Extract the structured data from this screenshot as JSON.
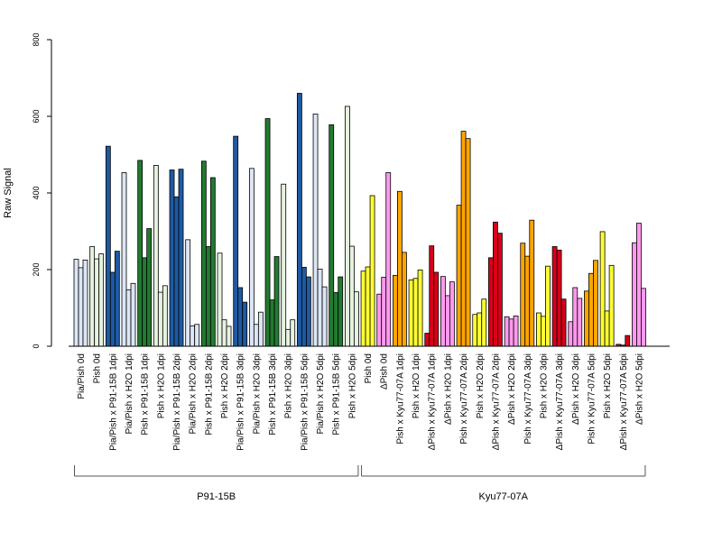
{
  "chart_data": {
    "type": "bar",
    "ylabel": "Raw Signal",
    "ylim": [
      0,
      800
    ],
    "yticks": [
      0,
      200,
      400,
      600,
      800
    ],
    "grid": false,
    "legend": "none",
    "categories": [
      "Pia/Pish 0d",
      "Pish 0d",
      "Pia/Pish x P91-15B 1dpi",
      "Pia/Pish x H2O 1dpi",
      "Pish x P91-15B 1dpi",
      "Pish x H2O 1dpi",
      "Pia/Pish x P91-15B 2dpi",
      "Pia/Pish x H2O 2dpi",
      "Pish x P91-15B 2dpi",
      "Pish x H2O 2dpi",
      "Pia/Pish x P91-15B 3dpi",
      "Pia/Pish x H2O 3dpi",
      "Pish x P91-15B 3dpi",
      "Pish x H2O 3dpi",
      "Pia/Pish x P91-15B 5dpi",
      "Pia/Pish x H2O 5dpi",
      "Pish x P91-15B 5dpi",
      "Pish x H2O 5dpi",
      "Pish 0d",
      "ΔPish 0d",
      "Pish x Kyu77-07A 1dpi",
      "Pish x H2O 1dpi",
      "ΔPish x Kyu77-07A 1dpi",
      "ΔPish x H2O 1dpi",
      "Pish x Kyu77-07A 2dpi",
      "Pish x H2O 2dpi",
      "ΔPish x Kyu77-07A 2dpi",
      "ΔPish x H2O 2dpi",
      "Pish x Kyu77-07A 3dpi",
      "Pish x H2O 3dpi",
      "ΔPish x Kyu77-07A 3dpi",
      "ΔPish x H2O 3dpi",
      "Pish x Kyu77-07A 5dpi",
      "Pish x H2O 5dpi",
      "ΔPish x Kyu77-07A 5dpi",
      "ΔPish x H2O 5dpi"
    ],
    "colors": [
      "#dce6f5",
      "#e6f2e0",
      "#1f5aa3",
      "#dce6f5",
      "#227a30",
      "#e6f2e0",
      "#1f5aa3",
      "#dce6f5",
      "#227a30",
      "#e6f2e0",
      "#1f5aa3",
      "#dce6f5",
      "#227a30",
      "#e6f2e0",
      "#1f5aa3",
      "#dce6f5",
      "#227a30",
      "#e6f2e0",
      "#ffff33",
      "#ff99ee",
      "#ffa500",
      "#ffff33",
      "#d7001a",
      "#ff99ee",
      "#ffa500",
      "#ffff33",
      "#d7001a",
      "#ff99ee",
      "#ffa500",
      "#ffff33",
      "#d7001a",
      "#ff99ee",
      "#ffa500",
      "#ffff33",
      "#d7001a",
      "#ff99ee"
    ],
    "values": [
      [
        227,
        205,
        225
      ],
      [
        260,
        228,
        241
      ],
      [
        522,
        193,
        248
      ],
      [
        453,
        147,
        164
      ],
      [
        485,
        231,
        307
      ],
      [
        472,
        141,
        158
      ],
      [
        460,
        390,
        462
      ],
      [
        278,
        53,
        57
      ],
      [
        483,
        260,
        440
      ],
      [
        243,
        69,
        52
      ],
      [
        548,
        153,
        115
      ],
      [
        464,
        57,
        89
      ],
      [
        594,
        121,
        234
      ],
      [
        423,
        44,
        69
      ],
      [
        660,
        206,
        181
      ],
      [
        606,
        201,
        155
      ],
      [
        578,
        140,
        181
      ],
      [
        626,
        261,
        142
      ],
      [
        196,
        207,
        393
      ],
      [
        136,
        180,
        453
      ],
      [
        185,
        404,
        245
      ],
      [
        173,
        177,
        199
      ],
      [
        34,
        262,
        193
      ],
      [
        182,
        132,
        168
      ],
      [
        368,
        561,
        542
      ],
      [
        83,
        87,
        123
      ],
      [
        231,
        324,
        295
      ],
      [
        77,
        71,
        79
      ],
      [
        269,
        235,
        329
      ],
      [
        87,
        78,
        209
      ],
      [
        260,
        251,
        123
      ],
      [
        64,
        153,
        125
      ],
      [
        144,
        190,
        224
      ],
      [
        299,
        92,
        211
      ],
      [
        5,
        3,
        28
      ],
      [
        270,
        321,
        151
      ]
    ],
    "groups": [
      {
        "label": "P91-15B",
        "start": 0,
        "end": 17
      },
      {
        "label": "Kyu77-07A",
        "start": 18,
        "end": 35
      }
    ]
  }
}
